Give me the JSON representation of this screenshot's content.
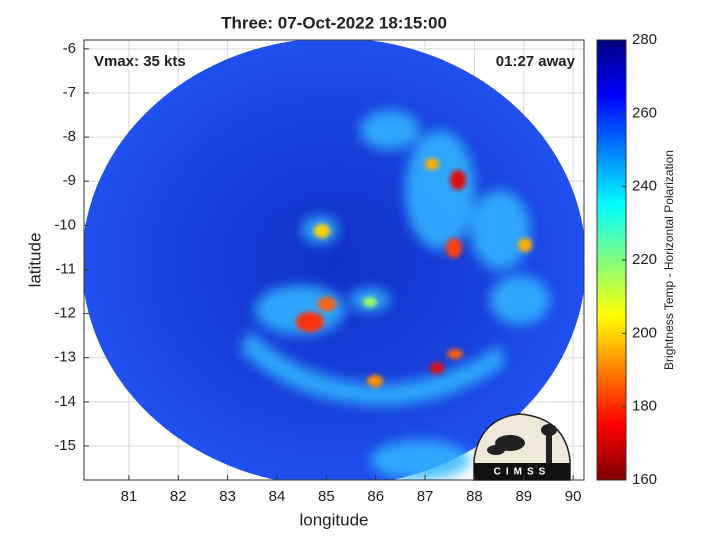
{
  "chart_data": {
    "type": "map",
    "title": "Three: 07-Oct-2022 18:15:00",
    "xlabel": "longitude",
    "ylabel": "latitude",
    "xlim": [
      80.09,
      90.22
    ],
    "ylim": [
      -15.77,
      -5.8
    ],
    "xticks": [
      81,
      82,
      83,
      84,
      85,
      86,
      87,
      88,
      89,
      90
    ],
    "yticks": [
      -6,
      -7,
      -8,
      -9,
      -10,
      -11,
      -12,
      -13,
      -14,
      -15
    ],
    "grid": true,
    "annotations": [
      "Vmax: 35 kts",
      "01:27 away"
    ],
    "colorbar": {
      "label": "Brightness Temp - Horizontal Polarization",
      "clim": [
        160,
        280
      ],
      "ticks": [
        160,
        180,
        200,
        220,
        240,
        260,
        280
      ],
      "colormap": "jet"
    },
    "logo": "CIMSS"
  }
}
